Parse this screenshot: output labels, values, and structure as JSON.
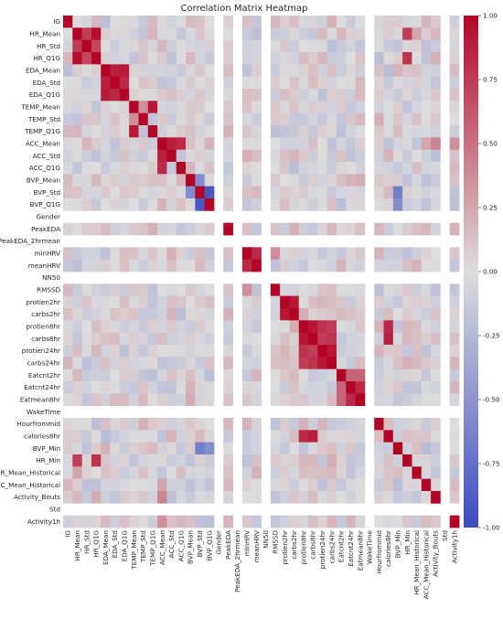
{
  "chart_data": {
    "type": "heatmap",
    "title": "Correlation Matrix Heatmap",
    "variables": [
      "IG",
      "HR_Mean",
      "HR_Std",
      "HR_Q1G",
      "EDA_Mean",
      "EDA_Std",
      "EDA_Q1G",
      "TEMP_Mean",
      "TEMP_Std",
      "TEMP_Q1G",
      "ACC_Mean",
      "ACC_Std",
      "ACC_Q1G",
      "BVP_Mean",
      "BVP_Std",
      "BVP_Q1G",
      "Gender",
      "PeakEDA",
      "PeakEDA_2hrmean",
      "minHRV",
      "meanHRV",
      "NN50",
      "RMSSD",
      "protien2hr",
      "carbs2hr",
      "protien8hr",
      "carbs8hr",
      "protien24hr",
      "carbs24hr",
      "Eatcnt2hr",
      "Eatcnt24hr",
      "Eatmean8hr",
      "WakeTime",
      "Hourfrommid",
      "calories8hr",
      "BVP_Min",
      "HR_Min",
      "HR_Mean_Historical",
      "ACC_Mean_Historical",
      "Activity_Bouts",
      "Std",
      "Activity1h"
    ],
    "y_tick_labels": [
      "IG",
      "HR_Mean",
      "HR_Std",
      "HR_Q1G",
      "EDA_Mean",
      "EDA_Std",
      "EDA_Q1G",
      "TEMP_Mean",
      "TEMP_Std",
      "TEMP_Q1G",
      "ACC_Mean",
      "ACC_Std",
      "ACC_Q1G",
      "BVP_Mean",
      "BVP_Std",
      "BVP_Q1G",
      "Gender",
      "PeakEDA",
      "PeakEDA_2hrmean",
      "minHRV",
      "meanHRV",
      "NN50",
      "RMSSD",
      "protien2hr",
      "carbs2hr",
      "protien8hr",
      "carbs8hr",
      "protien24hr",
      "carbs24hr",
      "Eatcnt2hr",
      "Eatcnt24hr",
      "Eatmean8hr",
      "WakeTime",
      "Hourfrommid",
      "calories8hr",
      "BVP_Min",
      "HR_Min",
      "HR_Mean_Historical",
      "ACC_Mean_Historical",
      "Activity_Bouts",
      "Std",
      "Activity1h"
    ],
    "x_tick_labels": [
      "IG",
      "HR_Mean",
      "HR_Std",
      "HR_Q1G",
      "EDA_Mean",
      "EDA_Std",
      "EDA_Q1G",
      "TEMP_Mean",
      "TEMP_Std",
      "TEMP_Q1G",
      "ACC_Mean",
      "ACC_Std",
      "ACC_Q1G",
      "BVP_Mean",
      "BVP_Std",
      "BVP_Q1G",
      "Gender",
      "PeakEDA",
      "PeakEDA_2hrmean",
      "minHRV",
      "meanHRV",
      "NN50",
      "RMSSD",
      "protien2hr",
      "carbs2hr",
      "protien8hr",
      "carbs8hr",
      "protien24hr",
      "carbs24hr",
      "Eatcnt2hr",
      "Eatcnt24hr",
      "Eatmean8hr",
      "WakeTime",
      "Hourfrommid",
      "calories8hr",
      "BVP_Min",
      "HR_Min",
      "HR_Mean_Historical",
      "ACC_Mean_Historical",
      "Activity_Bouts",
      "Std",
      "Activity1h"
    ],
    "colormap": "coolwarm",
    "color_low": "#3b4cc0",
    "color_mid": "#dddddd",
    "color_high": "#b40426",
    "vmin": -1.0,
    "vmax": 1.0,
    "colorbar_ticks": [
      "1.00",
      "0.75",
      "0.50",
      "0.25",
      "0.00",
      "-0.25",
      "-0.50",
      "-0.75",
      "-1.00"
    ],
    "colorbar_tick_values": [
      1.0,
      0.75,
      0.5,
      0.25,
      0.0,
      -0.25,
      -0.5,
      -0.75,
      -1.0
    ],
    "undefined_rows": [
      "Gender",
      "PeakEDA_2hrmean",
      "NN50",
      "WakeTime",
      "Std"
    ],
    "strong_correlations": [
      {
        "a": "HR_Mean",
        "b": "HR_Std",
        "r": 0.7
      },
      {
        "a": "HR_Mean",
        "b": "HR_Q1G",
        "r": 0.95
      },
      {
        "a": "HR_Std",
        "b": "HR_Q1G",
        "r": 0.65
      },
      {
        "a": "EDA_Mean",
        "b": "EDA_Std",
        "r": 0.85
      },
      {
        "a": "EDA_Mean",
        "b": "EDA_Q1G",
        "r": 0.9
      },
      {
        "a": "EDA_Std",
        "b": "EDA_Q1G",
        "r": 0.8
      },
      {
        "a": "TEMP_Mean",
        "b": "TEMP_Q1G",
        "r": 0.9
      },
      {
        "a": "TEMP_Mean",
        "b": "TEMP_Std",
        "r": 0.3
      },
      {
        "a": "ACC_Mean",
        "b": "ACC_Std",
        "r": 0.85
      },
      {
        "a": "ACC_Mean",
        "b": "ACC_Q1G",
        "r": 0.8
      },
      {
        "a": "BVP_Mean",
        "b": "BVP_Std",
        "r": -0.5
      },
      {
        "a": "BVP_Std",
        "b": "BVP_Q1G",
        "r": -0.9
      },
      {
        "a": "minHRV",
        "b": "meanHRV",
        "r": 0.8
      },
      {
        "a": "minHRV",
        "b": "RMSSD",
        "r": 0.3
      },
      {
        "a": "protien2hr",
        "b": "carbs2hr",
        "r": 0.9
      },
      {
        "a": "protien8hr",
        "b": "carbs8hr",
        "r": 0.9
      },
      {
        "a": "protien8hr",
        "b": "protien24hr",
        "r": 0.75
      },
      {
        "a": "protien8hr",
        "b": "carbs24hr",
        "r": 0.7
      },
      {
        "a": "carbs8hr",
        "b": "protien24hr",
        "r": 0.7
      },
      {
        "a": "carbs8hr",
        "b": "carbs24hr",
        "r": 0.75
      },
      {
        "a": "protien24hr",
        "b": "carbs24hr",
        "r": 0.9
      },
      {
        "a": "protien8hr",
        "b": "calories8hr",
        "r": 0.8
      },
      {
        "a": "carbs8hr",
        "b": "calories8hr",
        "r": 0.85
      },
      {
        "a": "Eatcnt2hr",
        "b": "Eatcnt24hr",
        "r": 0.5
      },
      {
        "a": "Eatcnt24hr",
        "b": "Eatmean8hr",
        "r": 0.8
      },
      {
        "a": "Eatcnt2hr",
        "b": "Eatmean8hr",
        "r": 0.5
      },
      {
        "a": "Hourfrommid",
        "b": "calories8hr",
        "r": 0.1
      },
      {
        "a": "BVP_Min",
        "b": "BVP_Std",
        "r": -0.6
      },
      {
        "a": "BVP_Min",
        "b": "BVP_Q1G",
        "r": -0.5
      },
      {
        "a": "HR_Min",
        "b": "HR_Mean",
        "r": 0.7
      },
      {
        "a": "HR_Min",
        "b": "HR_Q1G",
        "r": 0.75
      },
      {
        "a": "HR_Mean_Historical",
        "b": "HR_Mean",
        "r": 0.2
      },
      {
        "a": "ACC_Mean_Historical",
        "b": "ACC_Mean",
        "r": 0.2
      },
      {
        "a": "Activity_Bouts",
        "b": "ACC_Mean",
        "r": 0.35
      },
      {
        "a": "Activity1h",
        "b": "ACC_Mean",
        "r": 0.3
      }
    ]
  }
}
